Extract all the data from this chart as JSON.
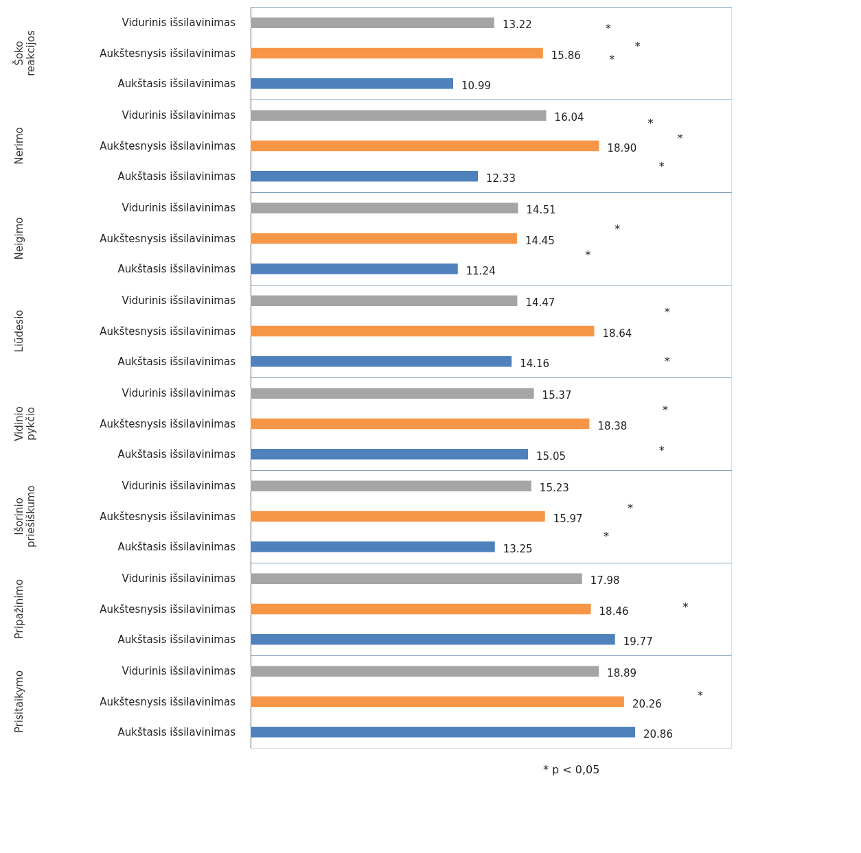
{
  "chart_data": {
    "type": "bar",
    "orientation": "horizontal",
    "grid": "y",
    "legend": false,
    "categories": [
      "Šoko reakcijos",
      "Nerimo",
      "Neigimo",
      "Liūdesio",
      "Vidinio pykčio",
      "Išorinio priešiškumo",
      "Pripažinimo",
      "Prisitaikymo"
    ],
    "series": [
      {
        "name": "Vidurinis išsilavinimas",
        "color": "#a5a5a5",
        "values": [
          13.22,
          16.04,
          14.51,
          14.47,
          15.37,
          15.23,
          17.98,
          18.89
        ],
        "value_labels": [
          "13.22",
          "16.04",
          "14.51",
          "14.47",
          "15.37",
          "15.23",
          "17.98",
          "18.89"
        ]
      },
      {
        "name": "Aukštesnysis išsilavinimas",
        "color": "#f79646",
        "values": [
          15.86,
          18.9,
          14.45,
          18.64,
          18.38,
          15.97,
          18.46,
          20.26
        ],
        "value_labels": [
          "15.86",
          "18.90",
          "14.45",
          "18.64",
          "18.38",
          "15.97",
          "18.46",
          "20.26"
        ]
      },
      {
        "name": "Aukštasis išsilavinimas",
        "color": "#4f81bd",
        "values": [
          10.99,
          12.33,
          11.24,
          14.16,
          15.05,
          13.25,
          19.77,
          20.86
        ],
        "value_labels": [
          "10.99",
          "12.33",
          "11.24",
          "14.16",
          "15.05",
          "13.25",
          "19.77",
          "20.86"
        ]
      }
    ],
    "annotations": [
      "*",
      "*",
      "*",
      "*",
      "*",
      "*",
      "*",
      "*",
      "*",
      "*",
      "*",
      "*",
      "*",
      "*",
      "*",
      "*",
      "* p < 0,05"
    ]
  }
}
